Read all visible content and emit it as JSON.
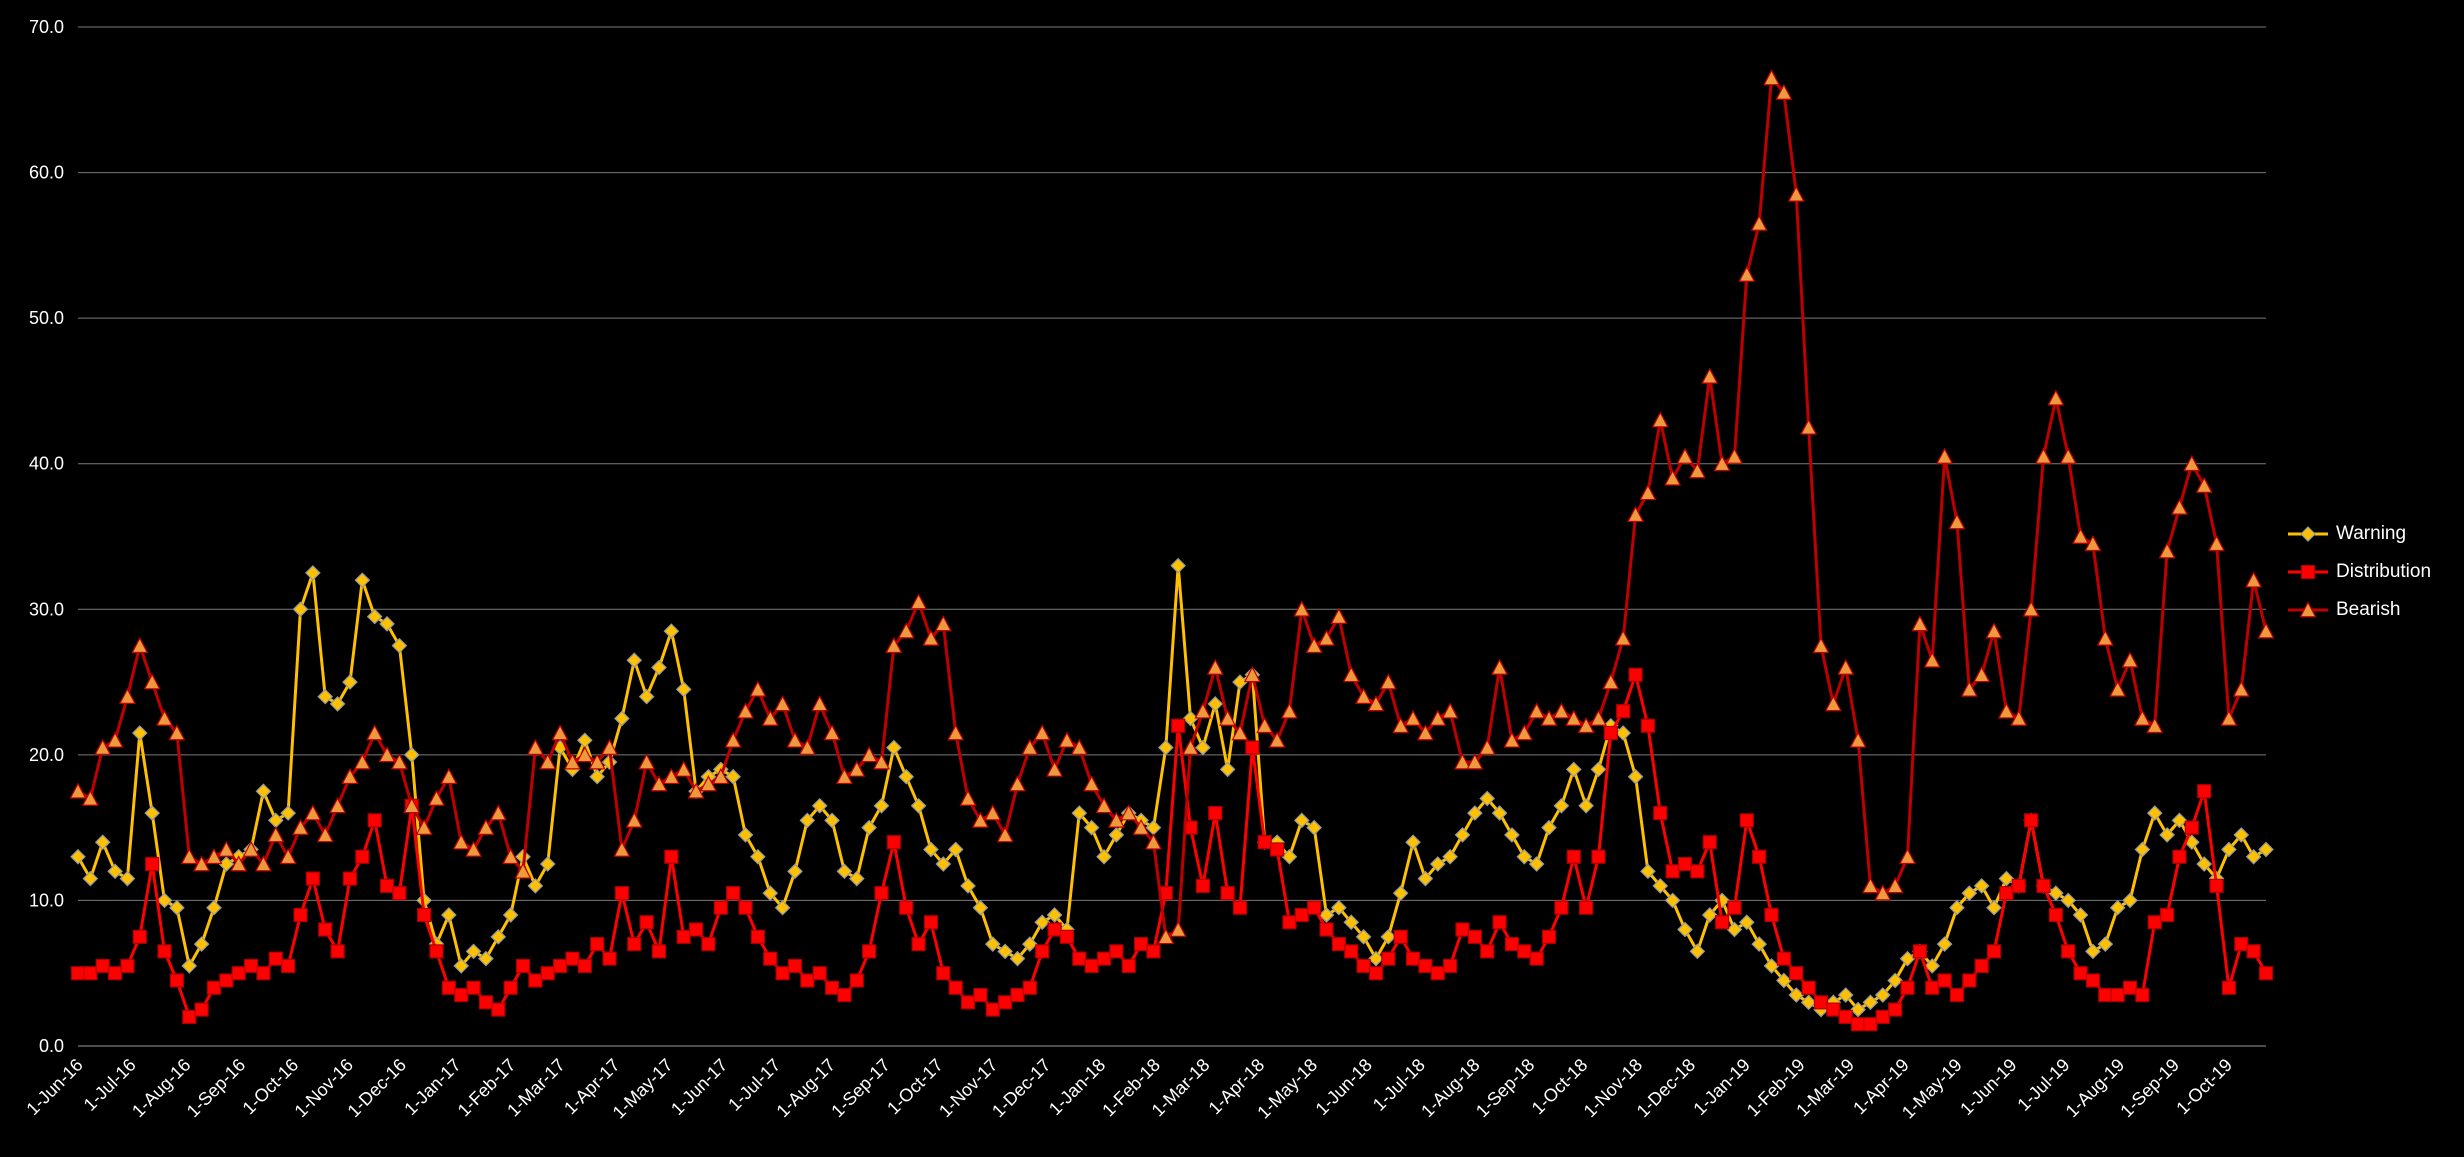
{
  "chart_data": {
    "type": "line",
    "title": "",
    "xlabel": "",
    "ylabel": "",
    "ylim": [
      0,
      70
    ],
    "grid": true,
    "legend_position": "right",
    "background": "#000000",
    "text_color": "#ffffff",
    "grid_color": "#7a7a7a",
    "axis_color": "#9a9a9a",
    "start_date": "2016-06-01",
    "interval_days": 7,
    "y_ticks": [
      0,
      10,
      20,
      30,
      40,
      50,
      60,
      70
    ],
    "y_tick_labels": [
      "0.0",
      "10.0",
      "20.0",
      "30.0",
      "40.0",
      "50.0",
      "60.0",
      "70.0"
    ],
    "x_tick_labels": [
      "1-Jun-16",
      "1-Jul-16",
      "1-Aug-16",
      "1-Sep-16",
      "1-Oct-16",
      "1-Nov-16",
      "1-Dec-16",
      "1-Jan-17",
      "1-Feb-17",
      "1-Mar-17",
      "1-Apr-17",
      "1-May-17",
      "1-Jun-17",
      "1-Jul-17",
      "1-Aug-17",
      "1-Sep-17",
      "1-Oct-17",
      "1-Nov-17",
      "1-Dec-17",
      "1-Jan-18",
      "1-Feb-18",
      "1-Mar-18",
      "1-Apr-18",
      "1-May-18",
      "1-Jun-18",
      "1-Jul-18",
      "1-Aug-18",
      "1-Sep-18",
      "1-Oct-18",
      "1-Nov-18",
      "1-Dec-18",
      "1-Jan-19",
      "1-Feb-19",
      "1-Mar-19",
      "1-Apr-19",
      "1-May-19",
      "1-Jun-19",
      "1-Jul-19",
      "1-Aug-19",
      "1-Sep-19",
      "1-Oct-19"
    ],
    "series": [
      {
        "name": "Warning",
        "color": "#FFC000",
        "marker": "diamond",
        "marker_fill": "#FFC000",
        "marker_stroke": "#8f98a8",
        "marker_size": 7,
        "values": [
          13,
          11.5,
          14,
          12,
          11.5,
          21.5,
          16,
          10,
          9.5,
          5.5,
          7,
          9.5,
          12.5,
          13,
          13.5,
          17.5,
          15.5,
          16,
          30,
          32.5,
          24,
          23.5,
          25,
          32,
          29.5,
          29,
          27.5,
          20,
          10,
          7,
          9,
          5.5,
          6.5,
          6,
          7.5,
          9,
          13,
          11,
          12.5,
          20.5,
          19,
          21,
          18.5,
          19.5,
          22.5,
          26.5,
          24,
          26,
          28.5,
          24.5,
          17.5,
          18.5,
          19,
          18.5,
          14.5,
          13,
          10.5,
          9.5,
          12,
          15.5,
          16.5,
          15.5,
          12,
          11.5,
          15,
          16.5,
          20.5,
          18.5,
          16.5,
          13.5,
          12.5,
          13.5,
          11,
          9.5,
          7,
          6.5,
          6,
          7,
          8.5,
          9,
          8,
          16,
          15,
          13,
          14.5,
          16,
          15.5,
          15,
          20.5,
          33,
          22.5,
          20.5,
          23.5,
          19,
          25,
          25.5,
          14,
          14,
          13,
          15.5,
          15,
          9,
          9.5,
          8.5,
          7.5,
          6,
          7.5,
          10.5,
          14,
          11.5,
          12.5,
          13,
          14.5,
          16,
          17,
          16,
          14.5,
          13,
          12.5,
          15,
          16.5,
          19,
          16.5,
          19,
          22,
          21.5,
          18.5,
          12,
          11,
          10,
          8,
          6.5,
          9,
          10,
          8,
          8.5,
          7,
          5.5,
          4.5,
          3.5,
          3,
          2.5,
          3,
          3.5,
          2.5,
          3,
          3.5,
          4.5,
          6,
          6.5,
          5.5,
          7,
          9.5,
          10.5,
          11,
          9.5,
          11.5,
          11,
          15.5,
          11,
          10.5,
          10,
          9,
          6.5,
          7,
          9.5,
          10,
          13.5,
          16,
          14.5,
          15.5,
          14,
          12.5,
          11.5,
          13.5,
          14.5,
          13,
          13.5
        ]
      },
      {
        "name": "Distribution",
        "color": "#FF0000",
        "marker": "square",
        "marker_fill": "#FF0000",
        "marker_stroke": "#B00000",
        "marker_size": 6.5,
        "values": [
          5,
          5,
          5.5,
          5,
          5.5,
          7.5,
          12.5,
          6.5,
          4.5,
          2,
          2.5,
          4,
          4.5,
          5,
          5.5,
          5,
          6,
          5.5,
          9,
          11.5,
          8,
          6.5,
          11.5,
          13,
          15.5,
          11,
          10.5,
          16.5,
          9,
          6.5,
          4,
          3.5,
          4,
          3,
          2.5,
          4,
          5.5,
          4.5,
          5,
          5.5,
          6,
          5.5,
          7,
          6,
          10.5,
          7,
          8.5,
          6.5,
          13,
          7.5,
          8,
          7,
          9.5,
          10.5,
          9.5,
          7.5,
          6,
          5,
          5.5,
          4.5,
          5,
          4,
          3.5,
          4.5,
          6.5,
          10.5,
          14,
          9.5,
          7,
          8.5,
          5,
          4,
          3,
          3.5,
          2.5,
          3,
          3.5,
          4,
          6.5,
          8,
          7.5,
          6,
          5.5,
          6,
          6.5,
          5.5,
          7,
          6.5,
          10.5,
          22,
          15,
          11,
          16,
          10.5,
          9.5,
          20.5,
          14,
          13.5,
          8.5,
          9,
          9.5,
          8,
          7,
          6.5,
          5.5,
          5,
          6,
          7.5,
          6,
          5.5,
          5,
          5.5,
          8,
          7.5,
          6.5,
          8.5,
          7,
          6.5,
          6,
          7.5,
          9.5,
          13,
          9.5,
          13,
          21.5,
          23,
          25.5,
          22,
          16,
          12,
          12.5,
          12,
          14,
          8.5,
          9.5,
          15.5,
          13,
          9,
          6,
          5,
          4,
          3,
          2.5,
          2,
          1.5,
          1.5,
          2,
          2.5,
          4,
          6.5,
          4,
          4.5,
          3.5,
          4.5,
          5.5,
          6.5,
          10.5,
          11,
          15.5,
          11,
          9,
          6.5,
          5,
          4.5,
          3.5,
          3.5,
          4,
          3.5,
          8.5,
          9,
          13,
          15,
          17.5,
          11,
          4,
          7,
          6.5,
          5
        ]
      },
      {
        "name": "Bearish",
        "color": "#C00000",
        "marker": "triangle",
        "marker_fill": "#ED9A3F",
        "marker_stroke": "#C00000",
        "marker_size": 7.5,
        "values": [
          17.5,
          17,
          20.5,
          21,
          24,
          27.5,
          25,
          22.5,
          21.5,
          13,
          12.5,
          13,
          13.5,
          12.5,
          13.5,
          12.5,
          14.5,
          13,
          15,
          16,
          14.5,
          16.5,
          18.5,
          19.5,
          21.5,
          20,
          19.5,
          16.5,
          15,
          17,
          18.5,
          14,
          13.5,
          15,
          16,
          13,
          12,
          20.5,
          19.5,
          21.5,
          19.5,
          20,
          19.5,
          20.5,
          13.5,
          15.5,
          19.5,
          18,
          18.5,
          19,
          17.5,
          18,
          18.5,
          21,
          23,
          24.5,
          22.5,
          23.5,
          21,
          20.5,
          23.5,
          21.5,
          18.5,
          19,
          20,
          19.5,
          27.5,
          28.5,
          30.5,
          28,
          29,
          21.5,
          17,
          15.5,
          16,
          14.5,
          18,
          20.5,
          21.5,
          19,
          21,
          20.5,
          18,
          16.5,
          15.5,
          16,
          15,
          14,
          7.5,
          8,
          20.5,
          23,
          26,
          22.5,
          21.5,
          25.5,
          22,
          21,
          23,
          30,
          27.5,
          28,
          29.5,
          25.5,
          24,
          23.5,
          25,
          22,
          22.5,
          21.5,
          22.5,
          23,
          19.5,
          19.5,
          20.5,
          26,
          21,
          21.5,
          23,
          22.5,
          23,
          22.5,
          22,
          22.5,
          25,
          28,
          36.5,
          38,
          43,
          39,
          40.5,
          39.5,
          46,
          40,
          40.5,
          53,
          56.5,
          66.5,
          65.5,
          58.5,
          42.5,
          27.5,
          23.5,
          26,
          21,
          11,
          10.5,
          11,
          13,
          29,
          26.5,
          40.5,
          36,
          24.5,
          25.5,
          28.5,
          23,
          22.5,
          30,
          40.5,
          44.5,
          40.5,
          35,
          34.5,
          28,
          24.5,
          26.5,
          22.5,
          22,
          34,
          37,
          40,
          38.5,
          34.5,
          22.5,
          24.5,
          32,
          28.5
        ]
      }
    ]
  },
  "legend": {
    "items": [
      {
        "label": "Warning"
      },
      {
        "label": "Distribution"
      },
      {
        "label": "Bearish"
      }
    ]
  }
}
